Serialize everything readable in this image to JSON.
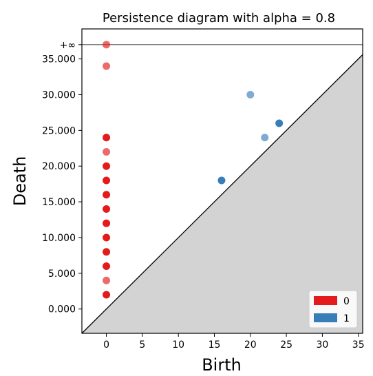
{
  "chart_data": {
    "type": "scatter",
    "title": "Persistence diagram with alpha = 0.8",
    "xlabel": "Birth",
    "ylabel": "Death",
    "xlim": [
      -3.4,
      35.6
    ],
    "ylim": [
      -3.4,
      39.2
    ],
    "infinity_label": "+∞",
    "infinity_value": 37.0,
    "x_ticks": [
      0,
      5,
      10,
      15,
      20,
      25,
      30,
      35
    ],
    "x_tick_labels": [
      "0",
      "5",
      "10",
      "15",
      "20",
      "25",
      "30",
      "35"
    ],
    "y_ticks": [
      0,
      5,
      10,
      15,
      20,
      25,
      30,
      35
    ],
    "y_tick_labels": [
      "0.000",
      "5.000",
      "10.000",
      "15.000",
      "20.000",
      "25.000",
      "30.000",
      "35.000"
    ],
    "diagonal": true,
    "legend_position": "bottom-right",
    "series": [
      {
        "name": "0",
        "color": "#e41a1c",
        "points": [
          {
            "x": 0,
            "y": 2,
            "strong": true
          },
          {
            "x": 0,
            "y": 4,
            "strong": false
          },
          {
            "x": 0,
            "y": 6,
            "strong": true
          },
          {
            "x": 0,
            "y": 8,
            "strong": true
          },
          {
            "x": 0,
            "y": 10,
            "strong": true
          },
          {
            "x": 0,
            "y": 12,
            "strong": true
          },
          {
            "x": 0,
            "y": 14,
            "strong": true
          },
          {
            "x": 0,
            "y": 16,
            "strong": true
          },
          {
            "x": 0,
            "y": 18,
            "strong": true
          },
          {
            "x": 0,
            "y": 20,
            "strong": true
          },
          {
            "x": 0,
            "y": 22,
            "strong": false
          },
          {
            "x": 0,
            "y": 24,
            "strong": true
          },
          {
            "x": 0,
            "y": 34,
            "strong": false
          },
          {
            "x": 0,
            "y": 37,
            "strong": false
          }
        ]
      },
      {
        "name": "1",
        "color": "#377eb8",
        "points": [
          {
            "x": 16,
            "y": 18,
            "strong": true
          },
          {
            "x": 20,
            "y": 30,
            "strong": false
          },
          {
            "x": 22,
            "y": 24,
            "strong": false
          },
          {
            "x": 24,
            "y": 26,
            "strong": true
          }
        ]
      }
    ]
  }
}
